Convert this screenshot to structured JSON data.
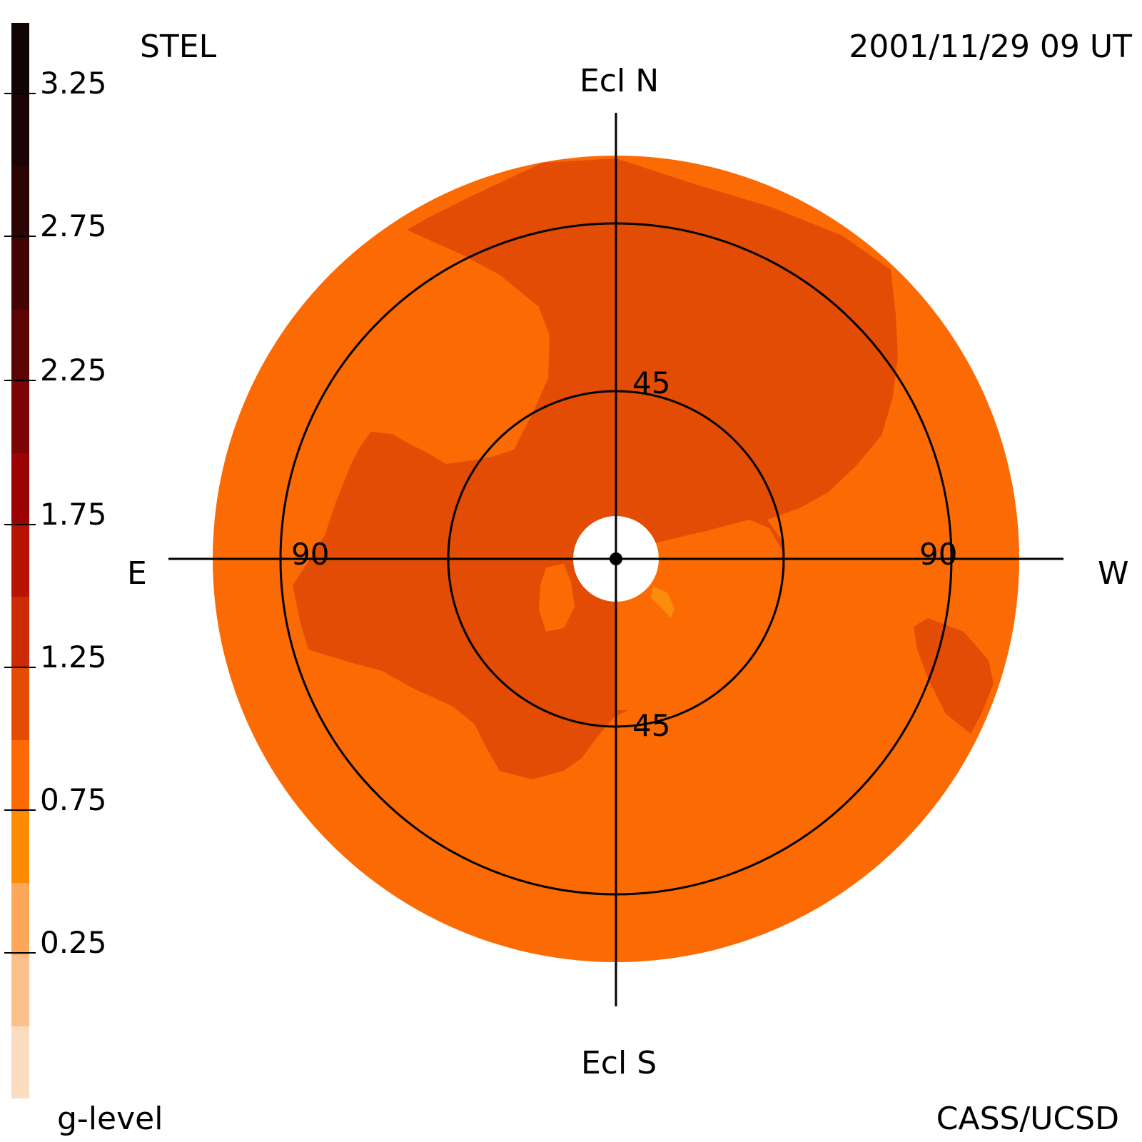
{
  "header": {
    "instrument": "STEL",
    "timestamp": "2001/11/29 09 UT"
  },
  "footer": {
    "colorbar_title": "g-level",
    "credit": "CASS/UCSD"
  },
  "map": {
    "directions": {
      "north": "Ecl N",
      "south": "Ecl S",
      "east": "E",
      "west": "W"
    },
    "ring_labels": {
      "inner_top": "45",
      "inner_bottom": "45",
      "outer_left": "90",
      "outer_right": "90"
    },
    "colors": {
      "base": "#fc6a04",
      "enhanced": "#e34c04",
      "bright": "#fc8c0c",
      "center": "#ffffff",
      "lines": "#000000"
    }
  },
  "colorbar": {
    "ticks": [
      "3.25",
      "2.75",
      "2.25",
      "1.75",
      "1.25",
      "0.75",
      "0.25"
    ],
    "colors": [
      "#fcdcc0",
      "#fcc08c",
      "#fca858",
      "#fc8c04",
      "#fc6a04",
      "#e34c04",
      "#cc2c04",
      "#b81404",
      "#9c0404",
      "#7c0404",
      "#5c0404",
      "#440404",
      "#2c0404",
      "#1c0404",
      "#100404"
    ]
  }
}
